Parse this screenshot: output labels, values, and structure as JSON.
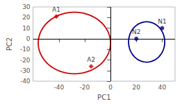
{
  "chart_data": {
    "type": "scatter",
    "title": "",
    "xlabel": "PC1",
    "ylabel": "PC2",
    "xlim": [
      -60,
      50
    ],
    "xticks": [
      -40,
      -20,
      0,
      20,
      40
    ],
    "ylim": [
      -40,
      30
    ],
    "yticks": [
      -40,
      -30,
      -20,
      -10,
      0,
      10,
      20,
      30
    ],
    "grid": false,
    "series": [
      {
        "color": "#cc0000",
        "marker": "diamond",
        "x": [
          -42,
          -15
        ],
        "values": [
          21,
          -26
        ],
        "labels": [
          "A1",
          "A2"
        ]
      },
      {
        "color": "#00008b",
        "marker": "circle",
        "x": [
          20,
          40
        ],
        "values": [
          0,
          10
        ],
        "labels": [
          "N2",
          "N1"
        ]
      }
    ],
    "ellipses": [
      {
        "cx": -28,
        "cy": -4,
        "width": 56,
        "height": 58,
        "angle": 0,
        "color": "#cc0000"
      },
      {
        "cx": 28,
        "cy": -3,
        "width": 28,
        "height": 38,
        "angle": 0,
        "color": "#00008b"
      }
    ]
  }
}
